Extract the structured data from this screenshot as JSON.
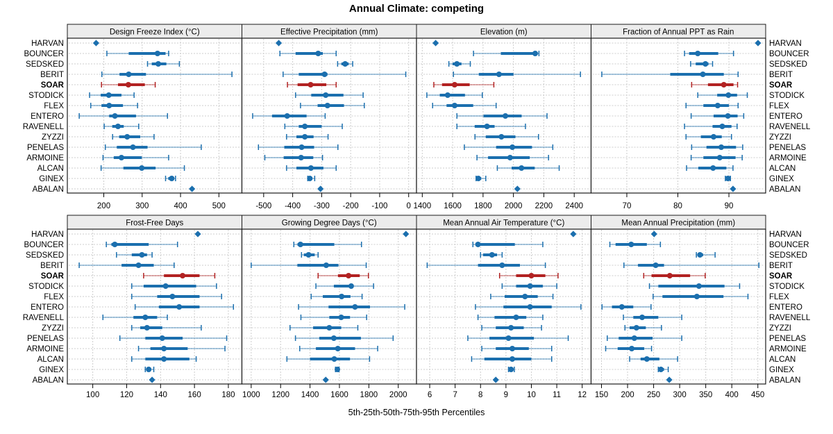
{
  "title": "Annual Climate: competing",
  "xlabel": "5th-25th-50th-75th-95th Percentiles",
  "sites": [
    "HARVAN",
    "BOUNCER",
    "SEDSKED",
    "BERIT",
    "SOAR",
    "STODICK",
    "FLEX",
    "ENTERO",
    "RAVENELL",
    "ZYZZI",
    "PENELAS",
    "ARMOINE",
    "ALCAN",
    "GINEX",
    "ABALAN"
  ],
  "highlight_site": "SOAR",
  "colors": {
    "series_blue": "#1b6fae",
    "highlight_red": "#b22222",
    "strip_bg": "#ececec",
    "frame": "#1a1a1a",
    "grid": "#cccccc",
    "text": "#000000"
  },
  "chart_data": [
    {
      "type": "dotplot_percentiles",
      "title": "Design Freeze Index (°C)",
      "grid_row": 0,
      "grid_col": 0,
      "xlim": [
        105,
        560
      ],
      "ticks": [
        200,
        300,
        400,
        500
      ],
      "percentiles_order": [
        "p5",
        "p25",
        "p50",
        "p75",
        "p95"
      ],
      "values": [
        [
          180,
          180,
          180,
          180,
          180
        ],
        [
          208,
          265,
          340,
          361,
          369
        ],
        [
          314,
          325,
          342,
          363,
          397
        ],
        [
          195,
          241,
          265,
          310,
          534
        ],
        [
          194,
          237,
          264,
          307,
          334
        ],
        [
          163,
          192,
          213,
          246,
          279
        ],
        [
          166,
          194,
          214,
          250,
          288
        ],
        [
          136,
          214,
          229,
          284,
          366
        ],
        [
          201,
          222,
          237,
          252,
          291
        ],
        [
          223,
          240,
          261,
          295,
          331
        ],
        [
          204,
          234,
          276,
          314,
          454
        ],
        [
          198,
          226,
          246,
          299,
          369
        ],
        [
          193,
          251,
          299,
          335,
          410
        ],
        [
          361,
          368,
          377,
          383,
          387
        ],
        [
          430,
          430,
          430,
          430,
          430
        ]
      ]
    },
    {
      "type": "dotplot_percentiles",
      "title": "Effective Precipitation (mm)",
      "grid_row": 0,
      "grid_col": 1,
      "xlim": [
        -575,
        27
      ],
      "ticks": [
        -500,
        -400,
        -300,
        -200,
        -100,
        0
      ],
      "percentiles_order": [
        "p5",
        "p25",
        "p50",
        "p75",
        "p95"
      ],
      "values": [
        [
          -448,
          -448,
          -448,
          -448,
          -448
        ],
        [
          -444,
          -390,
          -312,
          -296,
          -250
        ],
        [
          -245,
          -232,
          -219,
          -207,
          -193
        ],
        [
          -433,
          -379,
          -290,
          -280,
          -10
        ],
        [
          -418,
          -383,
          -338,
          -284,
          -250
        ],
        [
          -390,
          -336,
          -286,
          -225,
          -157
        ],
        [
          -373,
          -314,
          -280,
          -223,
          -153
        ],
        [
          -538,
          -471,
          -419,
          -352,
          -288
        ],
        [
          -427,
          -379,
          -358,
          -300,
          -229
        ],
        [
          -421,
          -387,
          -358,
          -328,
          -278
        ],
        [
          -518,
          -429,
          -369,
          -326,
          -244
        ],
        [
          -496,
          -431,
          -371,
          -329,
          -297
        ],
        [
          -421,
          -387,
          -337,
          -294,
          -250
        ],
        [
          -348,
          -344,
          -341,
          -332,
          -324
        ],
        [
          -304,
          -304,
          -304,
          -304,
          -304
        ]
      ]
    },
    {
      "type": "dotplot_percentiles",
      "title": "Elevation (m)",
      "grid_row": 0,
      "grid_col": 2,
      "xlim": [
        1362,
        2511
      ],
      "ticks": [
        1400,
        1600,
        1800,
        2000,
        2200,
        2400
      ],
      "percentiles_order": [
        "p5",
        "p25",
        "p50",
        "p75",
        "p95"
      ],
      "values": [
        [
          1488,
          1488,
          1488,
          1488,
          1488
        ],
        [
          1737,
          1917,
          2143,
          2160,
          2168
        ],
        [
          1575,
          1600,
          1628,
          1658,
          1716
        ],
        [
          1605,
          1772,
          1905,
          2000,
          2441
        ],
        [
          1476,
          1530,
          1613,
          1712,
          1871
        ],
        [
          1430,
          1515,
          1567,
          1681,
          1795
        ],
        [
          1468,
          1560,
          1613,
          1735,
          1886
        ],
        [
          1628,
          1803,
          1947,
          2054,
          2221
        ],
        [
          1628,
          1745,
          1826,
          1876,
          2079
        ],
        [
          1747,
          1818,
          1921,
          2013,
          2165
        ],
        [
          1677,
          1886,
          1993,
          2122,
          2259
        ],
        [
          1760,
          1833,
          1978,
          2107,
          2231
        ],
        [
          1894,
          1988,
          2053,
          2140,
          2301
        ],
        [
          1754,
          1760,
          1769,
          1788,
          1818
        ],
        [
          2026,
          2026,
          2026,
          2026,
          2026
        ]
      ]
    },
    {
      "type": "dotplot_percentiles",
      "title": "Fraction of Annual PPT as Rain",
      "grid_row": 0,
      "grid_col": 3,
      "xlim": [
        63,
        97.2
      ],
      "ticks": [
        70,
        80,
        90
      ],
      "percentiles_order": [
        "p5",
        "p25",
        "p50",
        "p75",
        "p95"
      ],
      "values": [
        [
          95.7,
          95.7,
          95.7,
          95.7,
          95.7
        ],
        [
          81.3,
          82.2,
          83.9,
          87.9,
          90.9
        ],
        [
          82.5,
          83.5,
          85.4,
          86.0,
          86.8
        ],
        [
          65.1,
          78.5,
          84.9,
          89.0,
          91.8
        ],
        [
          82.7,
          85.9,
          89.0,
          90.9,
          91.7
        ],
        [
          83.9,
          87.7,
          89.9,
          91.6,
          93.6
        ],
        [
          81.6,
          85.0,
          87.8,
          90.0,
          91.8
        ],
        [
          82.6,
          87.0,
          89.8,
          91.7,
          92.9
        ],
        [
          81.3,
          86.8,
          88.7,
          90.5,
          91.6
        ],
        [
          81.6,
          84.5,
          87.0,
          88.6,
          90.5
        ],
        [
          82.7,
          85.6,
          88.5,
          91.4,
          92.7
        ],
        [
          82.6,
          85.0,
          88.2,
          91.3,
          92.6
        ],
        [
          81.7,
          84.0,
          86.9,
          89.5,
          90.8
        ],
        [
          89.3,
          89.6,
          89.8,
          90.0,
          90.3
        ],
        [
          90.8,
          90.8,
          90.8,
          90.8,
          90.8
        ]
      ]
    },
    {
      "type": "dotplot_percentiles",
      "title": "Frost-Free Days",
      "grid_row": 1,
      "grid_col": 0,
      "xlim": [
        85,
        188
      ],
      "ticks": [
        100,
        120,
        140,
        160,
        180
      ],
      "percentiles_order": [
        "p5",
        "p25",
        "p50",
        "p75",
        "p95"
      ],
      "values": [
        [
          162,
          162,
          162,
          162,
          162
        ],
        [
          108,
          111,
          113,
          133,
          150
        ],
        [
          114,
          123,
          129,
          132,
          135
        ],
        [
          92,
          117,
          127,
          136,
          148
        ],
        [
          130,
          142,
          153,
          163,
          172
        ],
        [
          123,
          130,
          143,
          161,
          173
        ],
        [
          123,
          138,
          147,
          163,
          176
        ],
        [
          125,
          139,
          151,
          163,
          183
        ],
        [
          106,
          124,
          131,
          138,
          144
        ],
        [
          123,
          128,
          132,
          141,
          164
        ],
        [
          116,
          131,
          141,
          153,
          179
        ],
        [
          127,
          134,
          142,
          156,
          178
        ],
        [
          123,
          131,
          142,
          157,
          161
        ],
        [
          131,
          132,
          133,
          134,
          136
        ],
        [
          135,
          135,
          135,
          135,
          135
        ]
      ]
    },
    {
      "type": "dotplot_percentiles",
      "title": "Growing Degree Days (°C)",
      "grid_row": 1,
      "grid_col": 1,
      "xlim": [
        937,
        2124
      ],
      "ticks": [
        1000,
        1200,
        1400,
        1600,
        1800,
        2000
      ],
      "percentiles_order": [
        "p5",
        "p25",
        "p50",
        "p75",
        "p95"
      ],
      "values": [
        [
          2052,
          2052,
          2052,
          2052,
          2052
        ],
        [
          1290,
          1315,
          1335,
          1565,
          1750
        ],
        [
          1342,
          1358,
          1390,
          1432,
          1455
        ],
        [
          1000,
          1314,
          1510,
          1593,
          1782
        ],
        [
          1455,
          1590,
          1662,
          1738,
          1797
        ],
        [
          1440,
          1562,
          1680,
          1695,
          1832
        ],
        [
          1408,
          1487,
          1615,
          1675,
          1754
        ],
        [
          1322,
          1526,
          1706,
          1808,
          2044
        ],
        [
          1338,
          1531,
          1612,
          1672,
          1785
        ],
        [
          1264,
          1421,
          1531,
          1612,
          1725
        ],
        [
          1301,
          1463,
          1562,
          1746,
          1965
        ],
        [
          1330,
          1440,
          1589,
          1706,
          1860
        ],
        [
          1243,
          1400,
          1565,
          1672,
          1805
        ],
        [
          1573,
          1580,
          1586,
          1592,
          1597
        ],
        [
          1507,
          1507,
          1507,
          1507,
          1507
        ]
      ]
    },
    {
      "type": "dotplot_percentiles",
      "title": "Mean Annual Air Temperature (°C)",
      "grid_row": 1,
      "grid_col": 2,
      "xlim": [
        5.48,
        12.35
      ],
      "ticks": [
        6,
        7,
        8,
        9,
        10,
        11,
        12
      ],
      "percentiles_order": [
        "p5",
        "p25",
        "p50",
        "p75",
        "p95"
      ],
      "values": [
        [
          11.65,
          11.65,
          11.65,
          11.65,
          11.65
        ],
        [
          7.7,
          7.8,
          7.9,
          9.35,
          10.45
        ],
        [
          8.0,
          8.1,
          8.45,
          8.65,
          8.85
        ],
        [
          5.9,
          7.9,
          8.85,
          9.55,
          10.55
        ],
        [
          8.75,
          9.4,
          10.0,
          10.55,
          11.05
        ],
        [
          8.85,
          9.4,
          9.95,
          10.45,
          11.0
        ],
        [
          8.4,
          8.95,
          9.75,
          10.25,
          10.85
        ],
        [
          7.8,
          8.9,
          9.95,
          10.8,
          11.95
        ],
        [
          7.9,
          8.55,
          9.4,
          9.8,
          10.45
        ],
        [
          8.05,
          8.6,
          9.2,
          9.7,
          10.4
        ],
        [
          7.5,
          8.35,
          9.1,
          10.1,
          11.45
        ],
        [
          8.05,
          8.6,
          9.25,
          9.9,
          10.8
        ],
        [
          7.65,
          8.15,
          9.25,
          10.0,
          10.8
        ],
        [
          9.1,
          9.15,
          9.2,
          9.27,
          9.33
        ],
        [
          8.6,
          8.6,
          8.6,
          8.6,
          8.6
        ]
      ]
    },
    {
      "type": "dotplot_percentiles",
      "title": "Mean Annual Precipitation (mm)",
      "grid_row": 1,
      "grid_col": 3,
      "xlim": [
        130,
        465
      ],
      "ticks": [
        150,
        200,
        250,
        300,
        350,
        400,
        450
      ],
      "percentiles_order": [
        "p5",
        "p25",
        "p50",
        "p75",
        "p95"
      ],
      "values": [
        [
          251,
          251,
          251,
          251,
          251
        ],
        [
          166,
          177,
          207,
          237,
          263
        ],
        [
          332,
          334,
          339,
          345,
          368
        ],
        [
          193,
          220,
          254,
          270,
          452
        ],
        [
          231,
          246,
          281,
          320,
          349
        ],
        [
          242,
          259,
          337,
          386,
          415
        ],
        [
          249,
          267,
          333,
          384,
          431
        ],
        [
          151,
          170,
          189,
          211,
          245
        ],
        [
          192,
          211,
          228,
          259,
          304
        ],
        [
          195,
          204,
          217,
          235,
          265
        ],
        [
          161,
          183,
          213,
          248,
          304
        ],
        [
          158,
          181,
          208,
          232,
          246
        ],
        [
          204,
          225,
          237,
          261,
          296
        ],
        [
          259,
          262,
          264,
          270,
          278
        ],
        [
          280,
          280,
          280,
          280,
          280
        ]
      ]
    }
  ]
}
